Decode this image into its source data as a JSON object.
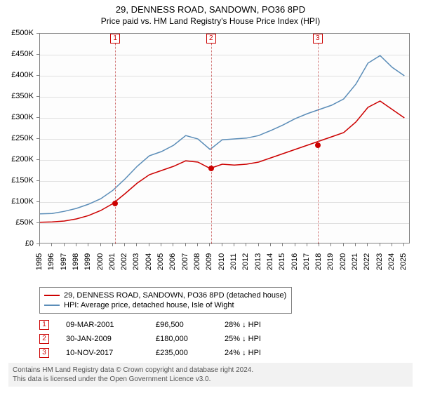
{
  "header": {
    "title": "29, DENNESS ROAD, SANDOWN, PO36 8PD",
    "subtitle": "Price paid vs. HM Land Registry's House Price Index (HPI)"
  },
  "chart": {
    "type": "line",
    "background_color": "#ffffff",
    "grid_color": "#e0e0e0",
    "axis_color": "#808080",
    "y": {
      "min": 0,
      "max": 500000,
      "step": 50000,
      "labels": [
        "£0",
        "£50K",
        "£100K",
        "£150K",
        "£200K",
        "£250K",
        "£300K",
        "£350K",
        "£400K",
        "£450K",
        "£500K"
      ]
    },
    "x": {
      "min": 1995,
      "max": 2025.5,
      "years": [
        1995,
        1996,
        1997,
        1998,
        1999,
        2000,
        2001,
        2002,
        2003,
        2004,
        2005,
        2006,
        2007,
        2008,
        2009,
        2010,
        2011,
        2012,
        2013,
        2014,
        2015,
        2016,
        2017,
        2018,
        2019,
        2020,
        2021,
        2022,
        2023,
        2024,
        2025
      ]
    },
    "series": [
      {
        "name": "29, DENNESS ROAD, SANDOWN, PO36 8PD (detached house)",
        "color": "#cc0000",
        "line_width": 1.5,
        "points": [
          [
            1995,
            52000
          ],
          [
            1996,
            53000
          ],
          [
            1997,
            55000
          ],
          [
            1998,
            60000
          ],
          [
            1999,
            68000
          ],
          [
            2000,
            80000
          ],
          [
            2001,
            96500
          ],
          [
            2002,
            120000
          ],
          [
            2003,
            145000
          ],
          [
            2004,
            165000
          ],
          [
            2005,
            175000
          ],
          [
            2006,
            185000
          ],
          [
            2007,
            198000
          ],
          [
            2008,
            195000
          ],
          [
            2009,
            180000
          ],
          [
            2010,
            190000
          ],
          [
            2011,
            188000
          ],
          [
            2012,
            190000
          ],
          [
            2013,
            195000
          ],
          [
            2014,
            205000
          ],
          [
            2015,
            215000
          ],
          [
            2016,
            225000
          ],
          [
            2017,
            235000
          ],
          [
            2018,
            245000
          ],
          [
            2019,
            255000
          ],
          [
            2020,
            265000
          ],
          [
            2021,
            290000
          ],
          [
            2022,
            325000
          ],
          [
            2023,
            340000
          ],
          [
            2024,
            320000
          ],
          [
            2025,
            300000
          ]
        ]
      },
      {
        "name": "HPI: Average price, detached house, Isle of Wight",
        "color": "#5b8db8",
        "line_width": 1.5,
        "points": [
          [
            1995,
            72000
          ],
          [
            1996,
            73000
          ],
          [
            1997,
            78000
          ],
          [
            1998,
            85000
          ],
          [
            1999,
            95000
          ],
          [
            2000,
            108000
          ],
          [
            2001,
            128000
          ],
          [
            2002,
            155000
          ],
          [
            2003,
            185000
          ],
          [
            2004,
            210000
          ],
          [
            2005,
            220000
          ],
          [
            2006,
            235000
          ],
          [
            2007,
            258000
          ],
          [
            2008,
            250000
          ],
          [
            2009,
            225000
          ],
          [
            2010,
            248000
          ],
          [
            2011,
            250000
          ],
          [
            2012,
            252000
          ],
          [
            2013,
            258000
          ],
          [
            2014,
            270000
          ],
          [
            2015,
            283000
          ],
          [
            2016,
            298000
          ],
          [
            2017,
            310000
          ],
          [
            2018,
            320000
          ],
          [
            2019,
            330000
          ],
          [
            2020,
            345000
          ],
          [
            2021,
            380000
          ],
          [
            2022,
            430000
          ],
          [
            2023,
            448000
          ],
          [
            2024,
            420000
          ],
          [
            2025,
            400000
          ]
        ]
      }
    ],
    "markers": [
      {
        "n": "1",
        "year": 2001.19,
        "price": 96500
      },
      {
        "n": "2",
        "year": 2009.08,
        "price": 180000
      },
      {
        "n": "3",
        "year": 2017.86,
        "price": 235000
      }
    ],
    "marker_color": "#cc0000",
    "marker_line_color": "#cc6666"
  },
  "legend": {
    "items": [
      {
        "color": "#cc0000",
        "label": "29, DENNESS ROAD, SANDOWN, PO36 8PD (detached house)"
      },
      {
        "color": "#5b8db8",
        "label": "HPI: Average price, detached house, Isle of Wight"
      }
    ]
  },
  "events": [
    {
      "n": "1",
      "date": "09-MAR-2001",
      "price": "£96,500",
      "delta": "28% ↓ HPI"
    },
    {
      "n": "2",
      "date": "30-JAN-2009",
      "price": "£180,000",
      "delta": "25% ↓ HPI"
    },
    {
      "n": "3",
      "date": "10-NOV-2017",
      "price": "£235,000",
      "delta": "24% ↓ HPI"
    }
  ],
  "footer": {
    "line1": "Contains HM Land Registry data © Crown copyright and database right 2024.",
    "line2": "This data is licensed under the Open Government Licence v3.0."
  }
}
